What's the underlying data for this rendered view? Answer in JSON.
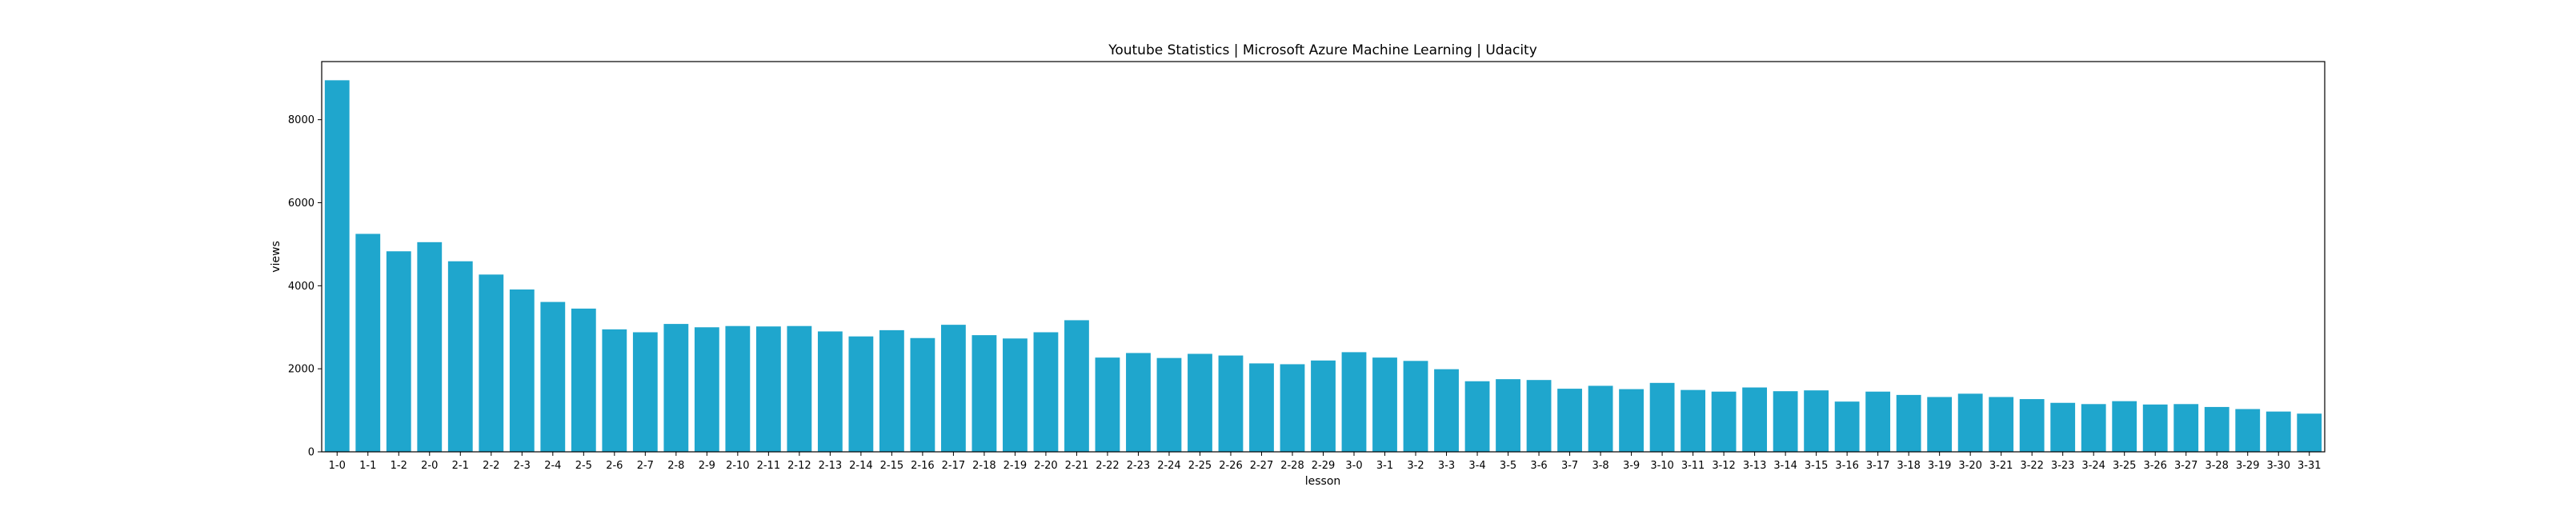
{
  "chart_data": {
    "type": "bar",
    "title": "Youtube Statistics | Microsoft Azure Machine Learning | Udacity",
    "xlabel": "lesson",
    "ylabel": "views",
    "ylim": [
      0,
      9400
    ],
    "yticks": [
      0,
      2000,
      4000,
      6000,
      8000
    ],
    "bar_color": "#1fa6cd",
    "grid": false,
    "categories": [
      "1-0",
      "1-1",
      "1-2",
      "2-0",
      "2-1",
      "2-2",
      "2-3",
      "2-4",
      "2-5",
      "2-6",
      "2-7",
      "2-8",
      "2-9",
      "2-10",
      "2-11",
      "2-12",
      "2-13",
      "2-14",
      "2-15",
      "2-16",
      "2-17",
      "2-18",
      "2-19",
      "2-20",
      "2-21",
      "2-22",
      "2-23",
      "2-24",
      "2-25",
      "2-26",
      "2-27",
      "2-28",
      "2-29",
      "3-0",
      "3-1",
      "3-2",
      "3-3",
      "3-4",
      "3-5",
      "3-6",
      "3-7",
      "3-8",
      "3-9",
      "3-10",
      "3-11",
      "3-12",
      "3-13",
      "3-14",
      "3-15",
      "3-16",
      "3-17",
      "3-18",
      "3-19",
      "3-20",
      "3-21",
      "3-22",
      "3-23",
      "3-24",
      "3-25",
      "3-26",
      "3-27",
      "3-28",
      "3-29",
      "3-30",
      "3-31"
    ],
    "values": [
      8950,
      5250,
      4830,
      5050,
      4590,
      4270,
      3910,
      3610,
      3450,
      2950,
      2880,
      3080,
      3000,
      3030,
      3020,
      3030,
      2900,
      2780,
      2930,
      2740,
      3060,
      2810,
      2730,
      2880,
      3170,
      2270,
      2380,
      2260,
      2360,
      2320,
      2130,
      2110,
      2200,
      2400,
      2270,
      2190,
      1990,
      1700,
      1750,
      1730,
      1520,
      1590,
      1510,
      1660,
      1490,
      1450,
      1550,
      1460,
      1480,
      1210,
      1450,
      1370,
      1320,
      1400,
      1320,
      1270,
      1180,
      1150,
      1220,
      1140,
      1150,
      1080,
      1030,
      970,
      920
    ]
  }
}
